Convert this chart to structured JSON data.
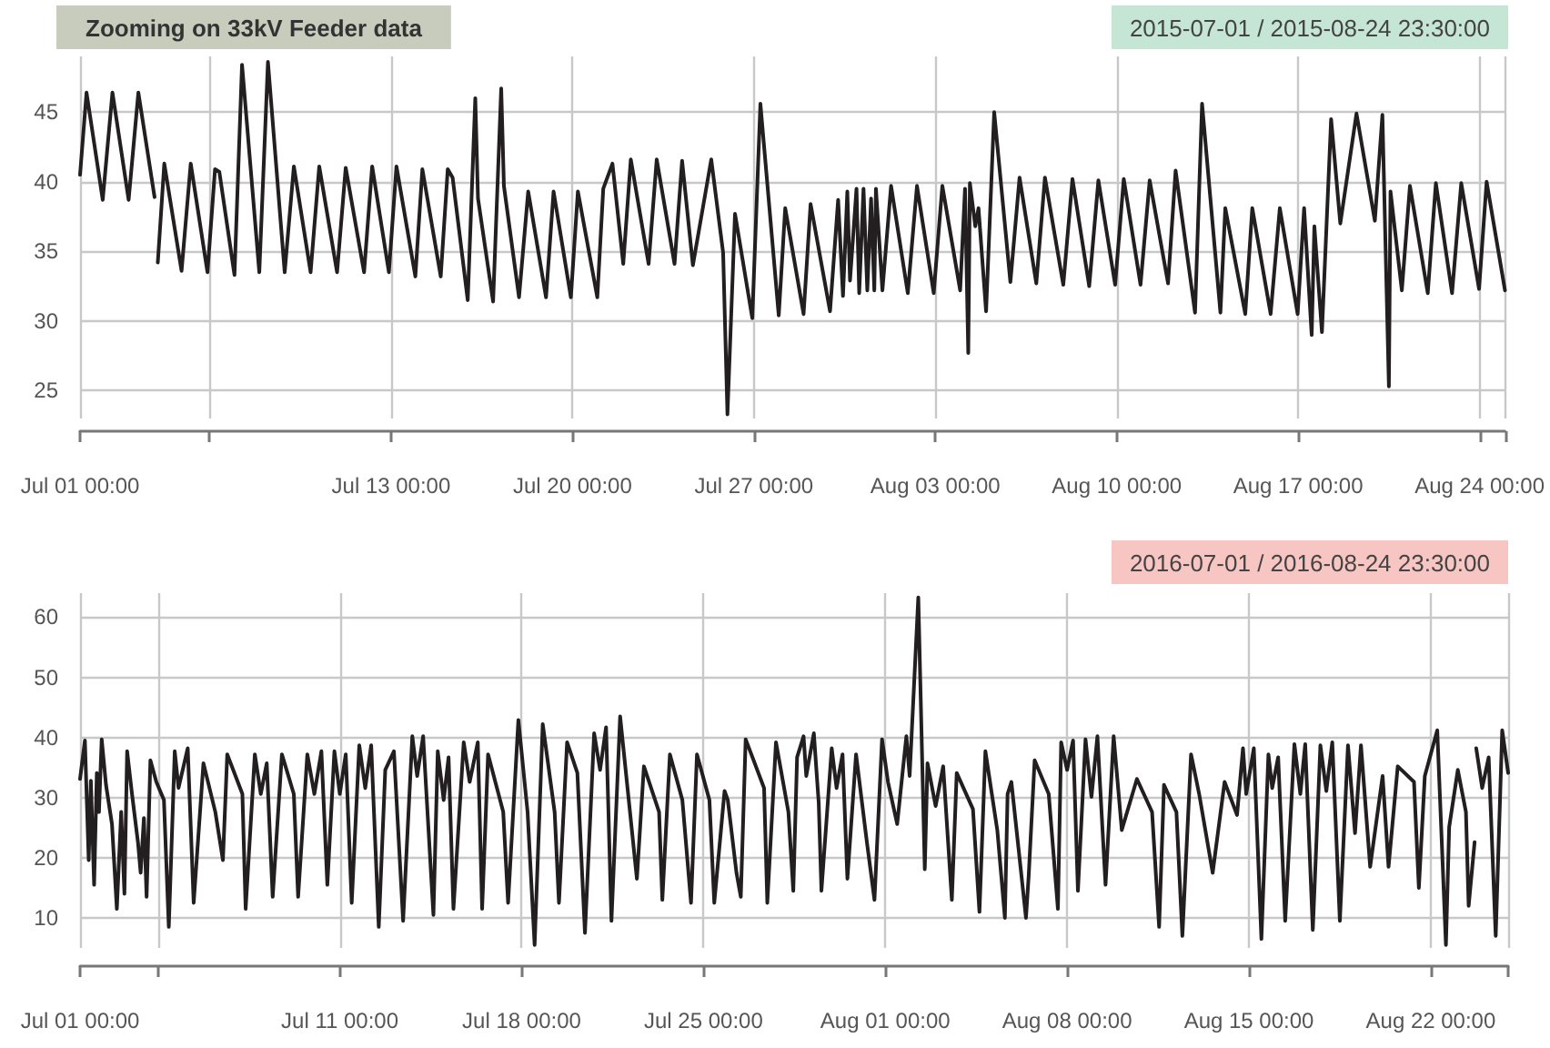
{
  "chart_data": [
    {
      "type": "line",
      "title": "Zooming on 33kV Feeder data",
      "subtitle": "2015-07-01 / 2015-08-24 23:30:00",
      "color": "#231f20",
      "grid": true,
      "xlim": [
        "2015-07-01T00:00",
        "2015-08-24T23:30"
      ],
      "xticks": [
        {
          "value": "2015-07-01T00:00",
          "label": "Jul 01 00:00"
        },
        {
          "value": "2015-07-06T00:00",
          "label": null
        },
        {
          "value": "2015-07-13T00:00",
          "label": "Jul 13 00:00"
        },
        {
          "value": "2015-07-20T00:00",
          "label": "Jul 20 00:00"
        },
        {
          "value": "2015-07-27T00:00",
          "label": "Jul 27 00:00"
        },
        {
          "value": "2015-08-03T00:00",
          "label": "Aug 03 00:00"
        },
        {
          "value": "2015-08-10T00:00",
          "label": "Aug 10 00:00"
        },
        {
          "value": "2015-08-17T00:00",
          "label": "Aug 17 00:00"
        },
        {
          "value": "2015-08-24T00:00",
          "label": "Aug 24 00:00"
        },
        {
          "value": "2015-08-24T23:30",
          "label": null
        }
      ],
      "ylim": [
        23,
        49
      ],
      "yticks": [
        25,
        30,
        35,
        40,
        45
      ],
      "x": [
        "2015-07-01T00:00",
        "2015-07-01T06:00",
        "2015-07-01T21:00",
        "2015-07-02T06:00",
        "2015-07-02T21:00",
        "2015-07-03T06:00",
        "2015-07-03T21:00",
        "2015-07-03T22:30",
        "2015-07-04T00:00",
        "2015-07-04T06:00",
        "2015-07-04T22:00",
        "2015-07-05T06:30",
        "2015-07-05T22:00",
        "2015-07-06T05:00",
        "2015-07-06T09:00",
        "2015-07-06T23:00",
        "2015-07-07T06:00",
        "2015-07-07T22:00",
        "2015-07-08T06:00",
        "2015-07-08T21:30",
        "2015-07-09T06:00",
        "2015-07-09T21:30",
        "2015-07-10T05:30",
        "2015-07-10T22:00",
        "2015-07-11T06:00",
        "2015-07-11T23:00",
        "2015-07-12T06:30",
        "2015-07-12T22:00",
        "2015-07-13T05:00",
        "2015-07-13T22:30",
        "2015-07-14T05:00",
        "2015-07-14T22:00",
        "2015-07-15T04:30",
        "2015-07-15T09:00",
        "2015-07-15T23:00",
        "2015-07-16T06:00",
        "2015-07-16T08:30",
        "2015-07-16T22:30",
        "2015-07-17T06:00",
        "2015-07-17T08:30",
        "2015-07-17T22:30",
        "2015-07-18T07:00",
        "2015-07-18T23:30",
        "2015-07-19T06:30",
        "2015-07-19T22:30",
        "2015-07-20T05:00",
        "2015-07-20T23:00",
        "2015-07-21T04:30",
        "2015-07-21T13:00",
        "2015-07-21T23:00",
        "2015-07-22T06:00",
        "2015-07-22T22:30",
        "2015-07-23T06:00",
        "2015-07-23T22:30",
        "2015-07-24T05:30",
        "2015-07-24T15:30",
        "2015-07-25T08:30",
        "2015-07-25T19:30",
        "2015-07-25T23:30",
        "2015-07-26T06:30",
        "2015-07-26T22:30",
        "2015-07-27T06:00",
        "2015-07-27T23:00",
        "2015-07-28T05:00",
        "2015-07-28T22:00",
        "2015-07-29T04:30",
        "2015-07-29T22:30",
        "2015-07-30T06:00",
        "2015-07-30T10:30",
        "2015-07-30T14:30",
        "2015-07-30T17:00",
        "2015-07-30T23:00",
        "2015-07-31T01:30",
        "2015-07-31T05:30",
        "2015-07-31T09:00",
        "2015-07-31T12:30",
        "2015-07-31T15:30",
        "2015-07-31T17:00",
        "2015-07-31T23:00",
        "2015-08-01T07:00",
        "2015-08-01T22:30",
        "2015-08-02T07:00",
        "2015-08-02T22:30",
        "2015-08-03T06:30",
        "2015-08-03T23:00",
        "2015-08-04T03:30",
        "2015-08-04T06:30",
        "2015-08-04T08:00",
        "2015-08-04T13:00",
        "2015-08-04T16:00",
        "2015-08-04T23:00",
        "2015-08-05T06:30",
        "2015-08-05T21:30",
        "2015-08-06T06:00",
        "2015-08-06T21:30",
        "2015-08-07T05:30",
        "2015-08-07T22:30",
        "2015-08-08T07:00",
        "2015-08-08T22:30",
        "2015-08-09T07:00",
        "2015-08-09T22:30",
        "2015-08-10T06:30",
        "2015-08-10T22:00",
        "2015-08-11T06:30",
        "2015-08-11T23:30",
        "2015-08-12T06:30",
        "2015-08-13T00:30",
        "2015-08-13T07:00",
        "2015-08-14T00:00",
        "2015-08-14T04:30",
        "2015-08-14T23:00",
        "2015-08-15T05:30",
        "2015-08-15T22:30",
        "2015-08-16T07:00",
        "2015-08-16T23:30",
        "2015-08-17T05:30",
        "2015-08-17T12:30",
        "2015-08-17T15:00",
        "2015-08-17T22:00",
        "2015-08-18T06:30",
        "2015-08-18T15:00",
        "2015-08-19T06:00",
        "2015-08-19T23:00",
        "2015-08-20T06:00",
        "2015-08-20T12:00",
        "2015-08-20T13:30",
        "2015-08-21T00:00",
        "2015-08-21T07:30",
        "2015-08-22T00:00",
        "2015-08-22T07:30",
        "2015-08-22T22:30",
        "2015-08-23T07:00",
        "2015-08-23T23:30",
        "2015-08-24T06:30",
        "2015-08-24T23:30"
      ],
      "values": [
        40.5,
        46.4,
        38.7,
        46.4,
        38.7,
        46.4,
        38.9,
        null,
        34.2,
        41.3,
        33.6,
        41.3,
        33.5,
        40.9,
        40.7,
        33.3,
        48.4,
        33.5,
        48.6,
        33.5,
        41.1,
        33.5,
        41.1,
        33.5,
        41,
        33.5,
        41.1,
        33.5,
        41.1,
        33.2,
        40.9,
        33.2,
        40.9,
        40.3,
        31.5,
        46,
        38.8,
        31.4,
        46.7,
        39.7,
        31.7,
        39.3,
        31.7,
        39.3,
        31.7,
        39.3,
        31.7,
        39.5,
        41.3,
        34.1,
        41.6,
        34.1,
        41.6,
        34.1,
        41.5,
        34,
        41.6,
        34.9,
        23.3,
        37.7,
        30.2,
        45.6,
        30.4,
        38.1,
        30.5,
        38.4,
        30.7,
        38.7,
        31.8,
        39.3,
        32.9,
        39.5,
        32,
        39.5,
        32.2,
        38.8,
        32.2,
        39.5,
        32.2,
        39.7,
        32,
        39.7,
        32,
        39.7,
        32.2,
        39.5,
        27.7,
        39.9,
        36.8,
        38.1,
        30.7,
        45,
        32.8,
        40.3,
        32.7,
        40.3,
        32.6,
        40.2,
        32.5,
        40.1,
        32.6,
        40.2,
        32.6,
        40.1,
        32.7,
        40.8,
        30.6,
        45.6,
        30.6,
        38.1,
        30.5,
        38.1,
        30.5,
        38.1,
        30.5,
        38.1,
        29,
        36.8,
        29.2,
        44.5,
        37,
        44.9,
        37.2,
        44.8,
        25.3,
        39.3,
        32.2,
        39.7,
        32,
        39.9,
        32,
        39.9,
        32.3,
        40,
        32.2
      ]
    },
    {
      "type": "line",
      "subtitle": "2016-07-01 / 2016-08-24 23:30:00",
      "color": "#231f20",
      "grid": true,
      "xlim": [
        "2016-07-01T00:00",
        "2016-08-24T23:30"
      ],
      "xticks": [
        {
          "value": "2016-07-01T00:00",
          "label": "Jul 01 00:00"
        },
        {
          "value": "2016-07-04T00:00",
          "label": null
        },
        {
          "value": "2016-07-11T00:00",
          "label": "Jul 11 00:00"
        },
        {
          "value": "2016-07-18T00:00",
          "label": "Jul 18 00:00"
        },
        {
          "value": "2016-07-25T00:00",
          "label": "Jul 25 00:00"
        },
        {
          "value": "2016-08-01T00:00",
          "label": "Aug 01 00:00"
        },
        {
          "value": "2016-08-08T00:00",
          "label": "Aug 08 00:00"
        },
        {
          "value": "2016-08-15T00:00",
          "label": "Aug 15 00:00"
        },
        {
          "value": "2016-08-22T00:00",
          "label": "Aug 22 00:00"
        },
        {
          "value": "2016-08-24T23:30",
          "label": null
        }
      ],
      "ylim": [
        5,
        64
      ],
      "yticks": [
        10,
        20,
        30,
        40,
        50,
        60
      ],
      "x": [
        "2016-07-01T00:00",
        "2016-07-01T04:30",
        "2016-07-01T08:00",
        "2016-07-01T10:00",
        "2016-07-01T13:00",
        "2016-07-01T15:30",
        "2016-07-01T17:30",
        "2016-07-01T20:00",
        "2016-07-02T00:00",
        "2016-07-02T05:30",
        "2016-07-02T10:00",
        "2016-07-02T14:00",
        "2016-07-02T17:00",
        "2016-07-02T19:30",
        "2016-07-03T00:00",
        "2016-07-03T05:30",
        "2016-07-03T08:00",
        "2016-07-03T11:00",
        "2016-07-03T13:30",
        "2016-07-03T17:00",
        "2016-07-03T22:30",
        "2016-07-04T05:30",
        "2016-07-04T10:00",
        "2016-07-04T15:30",
        "2016-07-04T19:00",
        "2016-07-05T03:30",
        "2016-07-05T09:00",
        "2016-07-05T18:00",
        "2016-07-06T05:00",
        "2016-07-06T12:00",
        "2016-07-06T16:00",
        "2016-07-07T06:00",
        "2016-07-07T09:00",
        "2016-07-07T17:30",
        "2016-07-07T23:00",
        "2016-07-08T04:30",
        "2016-07-08T10:00",
        "2016-07-08T18:30",
        "2016-07-09T05:30",
        "2016-07-09T09:30",
        "2016-07-09T18:00",
        "2016-07-10T00:30",
        "2016-07-10T07:00",
        "2016-07-10T12:30",
        "2016-07-10T19:00",
        "2016-07-11T00:00",
        "2016-07-11T05:30",
        "2016-07-11T11:00",
        "2016-07-11T18:00",
        "2016-07-11T23:30",
        "2016-07-12T05:00",
        "2016-07-12T12:00",
        "2016-07-12T18:00",
        "2016-07-13T02:00",
        "2016-07-13T10:30",
        "2016-07-13T19:00",
        "2016-07-13T23:30",
        "2016-07-14T05:00",
        "2016-07-14T14:30",
        "2016-07-14T18:30",
        "2016-07-15T00:00",
        "2016-07-15T04:30",
        "2016-07-15T09:00",
        "2016-07-15T18:30",
        "2016-07-16T00:00",
        "2016-07-16T07:30",
        "2016-07-16T11:30",
        "2016-07-16T17:00",
        "2016-07-17T07:00",
        "2016-07-17T11:30",
        "2016-07-17T21:00",
        "2016-07-18T05:30",
        "2016-07-18T12:00",
        "2016-07-18T19:30",
        "2016-07-19T06:30",
        "2016-07-19T10:30",
        "2016-07-19T18:00",
        "2016-07-20T03:30",
        "2016-07-20T10:30",
        "2016-07-20T19:00",
        "2016-07-21T00:30",
        "2016-07-21T06:00",
        "2016-07-21T08:00",
        "2016-07-21T11:00",
        "2016-07-21T19:00",
        "2016-07-22T10:30",
        "2016-07-22T17:00",
        "2016-07-23T07:00",
        "2016-07-23T10:00",
        "2016-07-23T17:00",
        "2016-07-24T04:30",
        "2016-07-24T12:30",
        "2016-07-24T18:00",
        "2016-07-25T05:30",
        "2016-07-25T10:00",
        "2016-07-25T19:30",
        "2016-07-25T22:30",
        "2016-07-26T06:30",
        "2016-07-26T10:30",
        "2016-07-26T15:00",
        "2016-07-27T08:00",
        "2016-07-27T11:00",
        "2016-07-27T19:00",
        "2016-07-28T06:30",
        "2016-07-28T11:00",
        "2016-07-28T14:30",
        "2016-07-28T20:30",
        "2016-07-28T23:00",
        "2016-07-29T06:00",
        "2016-07-29T10:30",
        "2016-07-29T13:00",
        "2016-07-29T22:30",
        "2016-07-30T03:00",
        "2016-07-30T08:30",
        "2016-07-30T13:00",
        "2016-07-30T21:00",
        "2016-07-31T07:00",
        "2016-07-31T14:00",
        "2016-07-31T21:00",
        "2016-08-01T02:30",
        "2016-08-01T11:00",
        "2016-08-01T19:30",
        "2016-08-01T22:30",
        "2016-08-02T06:30",
        "2016-08-02T12:30",
        "2016-08-02T15:00",
        "2016-08-02T22:30",
        "2016-08-03T05:30",
        "2016-08-03T13:30",
        "2016-08-03T18:00",
        "2016-08-04T09:00",
        "2016-08-04T15:00",
        "2016-08-04T20:30",
        "2016-08-05T07:30",
        "2016-08-05T14:30",
        "2016-08-05T17:00",
        "2016-08-05T20:30",
        "2016-08-06T10:00",
        "2016-08-06T12:30",
        "2016-08-06T18:00",
        "2016-08-07T07:00",
        "2016-08-07T15:30",
        "2016-08-07T18:30",
        "2016-08-08T00:00",
        "2016-08-08T05:30",
        "2016-08-08T10:00",
        "2016-08-08T17:00",
        "2016-08-08T22:30",
        "2016-08-09T04:00",
        "2016-08-09T11:30",
        "2016-08-09T19:00",
        "2016-08-10T02:30",
        "2016-08-10T16:30",
        "2016-08-11T06:30",
        "2016-08-11T13:00",
        "2016-08-11T17:30",
        "2016-08-12T05:00",
        "2016-08-12T10:30",
        "2016-08-12T18:30",
        "2016-08-13T02:00",
        "2016-08-13T14:30",
        "2016-08-14T01:30",
        "2016-08-14T13:00",
        "2016-08-14T18:30",
        "2016-08-14T21:30",
        "2016-08-15T04:30",
        "2016-08-15T11:30",
        "2016-08-15T18:00",
        "2016-08-15T21:30",
        "2016-08-16T03:00",
        "2016-08-16T09:30",
        "2016-08-16T18:00",
        "2016-08-16T23:30",
        "2016-08-17T04:00",
        "2016-08-17T11:00",
        "2016-08-17T18:00",
        "2016-08-17T23:30",
        "2016-08-18T05:00",
        "2016-08-18T12:00",
        "2016-08-18T19:30",
        "2016-08-19T02:00",
        "2016-08-19T07:30",
        "2016-08-19T16:00",
        "2016-08-20T03:30",
        "2016-08-20T09:00",
        "2016-08-20T17:30",
        "2016-08-21T08:30",
        "2016-08-21T13:00",
        "2016-08-21T18:30",
        "2016-08-22T06:00",
        "2016-08-22T14:00",
        "2016-08-22T17:00",
        "2016-08-23T01:00",
        "2016-08-23T08:30",
        "2016-08-23T11:00",
        "2016-08-23T16:30",
        "2016-08-23T17:00",
        "2016-08-23T18:00",
        "2016-08-23T23:30",
        "2016-08-24T05:30",
        "2016-08-24T12:00",
        "2016-08-24T18:00",
        "2016-08-24T23:30"
      ],
      "values": [
        33.1,
        39.5,
        19.6,
        32.8,
        15.5,
        34.1,
        27.6,
        39.7,
        32.1,
        25.6,
        11.5,
        27.6,
        14,
        37.7,
        30.6,
        22.6,
        17.5,
        26.6,
        13.5,
        36.2,
        32.6,
        29.6,
        8.5,
        37.7,
        31.6,
        38.2,
        12.5,
        35.7,
        27.6,
        19.6,
        37.2,
        30.6,
        11.5,
        37.2,
        30.6,
        35.7,
        13.5,
        37.2,
        30.6,
        13.5,
        37.2,
        30.6,
        37.7,
        15.5,
        37.7,
        30.6,
        37.2,
        12.5,
        38.7,
        31.6,
        38.7,
        8.5,
        34.6,
        37.7,
        9.5,
        40.2,
        33.6,
        40.2,
        10.5,
        37.7,
        29.6,
        36.7,
        11.5,
        39.2,
        32.6,
        39.2,
        11.5,
        37.2,
        27.6,
        12.5,
        42.9,
        27.6,
        5.5,
        42.2,
        27.6,
        12.5,
        39.2,
        34.1,
        7.5,
        40.7,
        34.6,
        41.7,
        29.1,
        9.5,
        43.5,
        16.5,
        35.2,
        27.6,
        13,
        37.2,
        29.6,
        12.5,
        37.2,
        29.6,
        12.5,
        31.1,
        29.6,
        17.5,
        13.5,
        39.7,
        31.6,
        12.5,
        39.2,
        27.6,
        14.5,
        36.7,
        40.2,
        33.6,
        40.7,
        29.1,
        14.5,
        38.2,
        31.6,
        37.2,
        16.5,
        37.2,
        22.6,
        13,
        39.7,
        32.6,
        25.6,
        40.2,
        33.6,
        63.3,
        18.1,
        35.7,
        28.6,
        35.2,
        13,
        34.1,
        28.1,
        11,
        37.7,
        24.6,
        10,
        30.6,
        32.6,
        10,
        17,
        36.2,
        30.6,
        11.5,
        39.2,
        34.6,
        39.5,
        14.5,
        39.7,
        30.1,
        40.2,
        15.5,
        40.2,
        24.6,
        33.1,
        27.6,
        8.5,
        32.1,
        27.6,
        7,
        37.2,
        30.6,
        17.5,
        32.6,
        27.1,
        38.2,
        30.6,
        38.2,
        6.5,
        37.2,
        31.6,
        36.7,
        9.5,
        38.9,
        30.6,
        38.9,
        8,
        38.7,
        31.1,
        39.2,
        9.5,
        38.7,
        24.1,
        38.7,
        18.5,
        33.6,
        18.5,
        35.2,
        32.6,
        15,
        33.6,
        41.2,
        5.5,
        25.1,
        34.6,
        27.6,
        12,
        22.6,
        null,
        38.2,
        31.6,
        36.7,
        7,
        41.2,
        34.1
      ]
    }
  ]
}
